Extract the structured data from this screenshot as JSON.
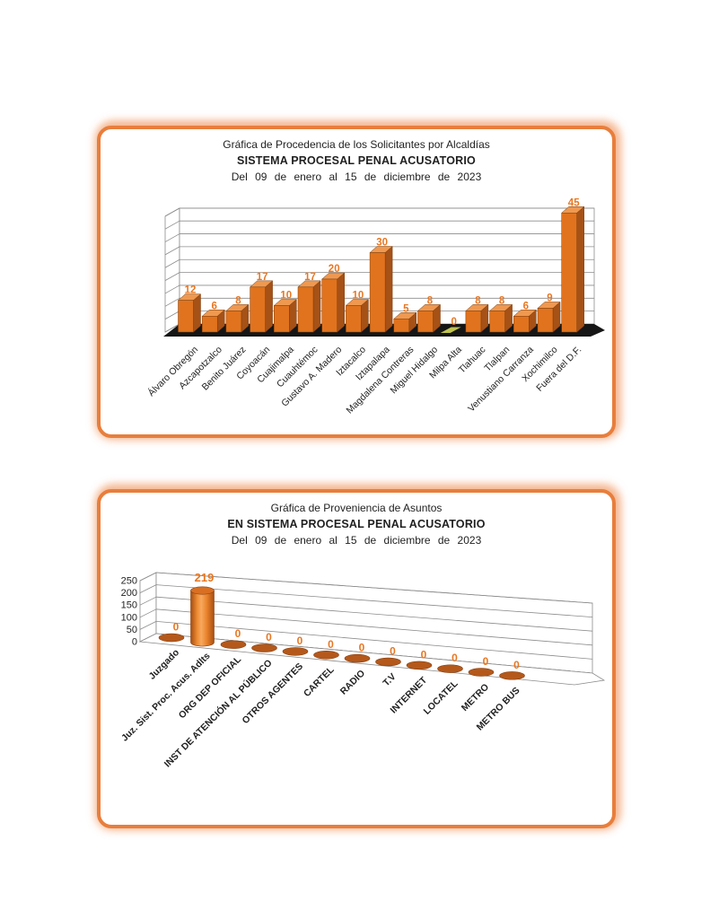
{
  "page": {
    "background": "#ffffff"
  },
  "panels": [
    {
      "id": "alcaldias",
      "title_lines": [
        "Gráfica de Procedencia de los Solicitantes por Alcaldías",
        "SISTEMA PROCESAL PENAL ACUSATORIO",
        "Del 09 de enero al 15 de diciembre de 2023"
      ],
      "chart_data": {
        "type": "bar",
        "style": "3d-box",
        "title": "Gráfica de Procedencia de los Solicitantes por Alcaldías - SISTEMA PROCESAL PENAL ACUSATORIO",
        "categories": [
          "Álvaro Obregón",
          "Azcapotzalco",
          "Benito Juárez",
          "Coyoacán",
          "Cuajimalpa",
          "Cuauhtémoc",
          "Gustavo A. Madero",
          "Iztacalco",
          "Iztapalapa",
          "Magdalena Contreras",
          "Miguel Hidalgo",
          "Milpa Alta",
          "Tlahuac",
          "Tlalpan",
          "Venustiano Carranza",
          "Xochimilco",
          "Fuera del D.F."
        ],
        "values": [
          12,
          6,
          8,
          17,
          10,
          17,
          20,
          10,
          30,
          5,
          8,
          0,
          8,
          8,
          6,
          9,
          45
        ],
        "ylim": [
          0,
          45
        ],
        "ytick_step": 5,
        "y_axis_labels_visible": false,
        "grid": true,
        "legend": "none",
        "xlabel": "",
        "ylabel": ""
      }
    },
    {
      "id": "proveniencia",
      "title_lines": [
        "Gráfica de Proveniencia de Asuntos",
        "EN SISTEMA PROCESAL PENAL ACUSATORIO",
        "Del 09 de enero al 15 de diciembre de 2023"
      ],
      "chart_data": {
        "type": "bar",
        "style": "3d-cylinder",
        "title": "Gráfica de Proveniencia de Asuntos EN SISTEMA PROCESAL PENAL ACUSATORIO",
        "categories": [
          "Juzgado",
          "Juz. Sist. Proc. Acus. Adlts",
          "ORG DEP OFICIAL",
          "INST DE ATENCIÓN AL PÚBLICO",
          "OTROS AGENTES",
          "CARTEL",
          "RADIO",
          "T.V",
          "INTERNET",
          "LOCATEL",
          "METRO",
          "METRO BUS"
        ],
        "values": [
          0,
          219,
          0,
          0,
          0,
          0,
          0,
          0,
          0,
          0,
          0,
          0
        ],
        "ylim": [
          0,
          250
        ],
        "yticks": [
          "0",
          "50",
          "100",
          "150",
          "200",
          "250"
        ],
        "ytick_step": 50,
        "y_axis_labels_visible": true,
        "grid": true,
        "legend": "none",
        "xlabel": "",
        "ylabel": ""
      }
    }
  ],
  "colors": {
    "panel_border": "#E87E3C",
    "grid_line": "#8c8c8c",
    "bar_front": "#E1731E",
    "bar_side": "#A65116",
    "bar_top": "#EF9850",
    "bar_outline": "#7A3E0E",
    "value_label": "#E87722",
    "ellipse_fill": "#B4591B",
    "floor_dark": "#161616",
    "floor_accent": "#C9CE52",
    "text": "#1f1f1f"
  }
}
